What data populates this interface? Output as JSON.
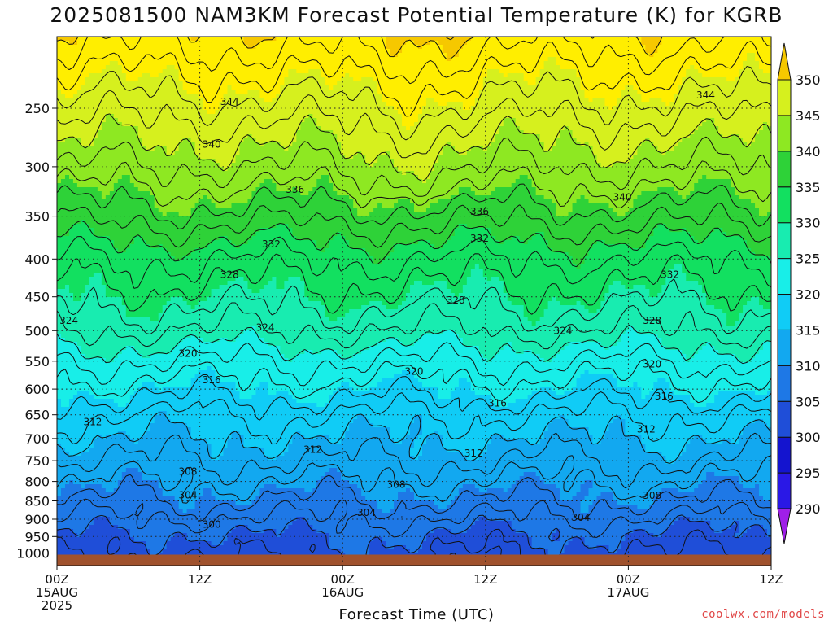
{
  "header": {
    "title": "2025081500 NAM3KM Forecast Potential Temperature (K) for KGRB"
  },
  "footer": {
    "xlabel": "Forecast Time (UTC)",
    "credit": "coolwx.com/models"
  },
  "chart_data": {
    "type": "heatmap",
    "title": "2025081500 NAM3KM Forecast Potential Temperature (K) for KGRB",
    "xlabel": "Forecast Time (UTC)",
    "ylabel": "",
    "x_forecast_hours_range": [
      0,
      60
    ],
    "x_ticks": [
      {
        "hour": 0,
        "lines": [
          "00Z",
          "15AUG",
          "2025"
        ]
      },
      {
        "hour": 12,
        "lines": [
          "12Z"
        ]
      },
      {
        "hour": 24,
        "lines": [
          "00Z",
          "16AUG"
        ]
      },
      {
        "hour": 36,
        "lines": [
          "12Z"
        ]
      },
      {
        "hour": 48,
        "lines": [
          "00Z",
          "17AUG"
        ]
      },
      {
        "hour": 60,
        "lines": [
          "12Z"
        ]
      }
    ],
    "y_axis": "pressure (hPa), inverted, log scale",
    "y_range": [
      1040,
      200
    ],
    "y_ticks": [
      250,
      300,
      350,
      400,
      450,
      500,
      550,
      600,
      650,
      700,
      750,
      800,
      850,
      900,
      950,
      1000
    ],
    "grid": "dotted",
    "colorbar": {
      "placement": "right",
      "levels": [
        290,
        295,
        300,
        305,
        310,
        315,
        320,
        325,
        330,
        335,
        340,
        345,
        350
      ],
      "colors": [
        "#9f1fe8",
        "#2a18e6",
        "#1414cf",
        "#1f4ed8",
        "#1e78e6",
        "#12a8f0",
        "#10ccf6",
        "#18eee8",
        "#18ecb0",
        "#12e060",
        "#2ed238",
        "#8ee822",
        "#d6f01e",
        "#ffee00",
        "#f6c800"
      ]
    },
    "ground_color": "#a0522d",
    "contour_interval": 2,
    "profile_hour0": [
      {
        "p": 1000,
        "theta": 299
      },
      {
        "p": 950,
        "theta": 300
      },
      {
        "p": 900,
        "theta": 302
      },
      {
        "p": 850,
        "theta": 304
      },
      {
        "p": 800,
        "theta": 306
      },
      {
        "p": 750,
        "theta": 308
      },
      {
        "p": 700,
        "theta": 310
      },
      {
        "p": 650,
        "theta": 312
      },
      {
        "p": 600,
        "theta": 315
      },
      {
        "p": 550,
        "theta": 318
      },
      {
        "p": 500,
        "theta": 322
      },
      {
        "p": 450,
        "theta": 325
      },
      {
        "p": 400,
        "theta": 328
      },
      {
        "p": 350,
        "theta": 333
      },
      {
        "p": 300,
        "theta": 338
      },
      {
        "p": 250,
        "theta": 343
      },
      {
        "p": 200,
        "theta": 349
      }
    ],
    "contour_labels": [
      {
        "text": "344",
        "hour": 14.5,
        "p": 245
      },
      {
        "text": "344",
        "hour": 54.5,
        "p": 240
      },
      {
        "text": "340",
        "hour": 13,
        "p": 280
      },
      {
        "text": "340",
        "hour": 47.5,
        "p": 330
      },
      {
        "text": "336",
        "hour": 20,
        "p": 322
      },
      {
        "text": "336",
        "hour": 35.5,
        "p": 345
      },
      {
        "text": "332",
        "hour": 18,
        "p": 382
      },
      {
        "text": "332",
        "hour": 35.5,
        "p": 375
      },
      {
        "text": "332",
        "hour": 51.5,
        "p": 420
      },
      {
        "text": "328",
        "hour": 14.5,
        "p": 420
      },
      {
        "text": "328",
        "hour": 33.5,
        "p": 455
      },
      {
        "text": "328",
        "hour": 50,
        "p": 485
      },
      {
        "text": "324",
        "hour": 1,
        "p": 485
      },
      {
        "text": "324",
        "hour": 17.5,
        "p": 495
      },
      {
        "text": "324",
        "hour": 42.5,
        "p": 500
      },
      {
        "text": "320",
        "hour": 11,
        "p": 537
      },
      {
        "text": "320",
        "hour": 30,
        "p": 568
      },
      {
        "text": "320",
        "hour": 50,
        "p": 555
      },
      {
        "text": "316",
        "hour": 13,
        "p": 583
      },
      {
        "text": "316",
        "hour": 37,
        "p": 627
      },
      {
        "text": "316",
        "hour": 51,
        "p": 614
      },
      {
        "text": "312",
        "hour": 3,
        "p": 665
      },
      {
        "text": "312",
        "hour": 21.5,
        "p": 725
      },
      {
        "text": "312",
        "hour": 35,
        "p": 733
      },
      {
        "text": "312",
        "hour": 49.5,
        "p": 680
      },
      {
        "text": "308",
        "hour": 11,
        "p": 776
      },
      {
        "text": "308",
        "hour": 28.5,
        "p": 808
      },
      {
        "text": "308",
        "hour": 50,
        "p": 836
      },
      {
        "text": "304",
        "hour": 11,
        "p": 835
      },
      {
        "text": "304",
        "hour": 26,
        "p": 882
      },
      {
        "text": "304",
        "hour": 44,
        "p": 896
      },
      {
        "text": "300",
        "hour": 13,
        "p": 915
      }
    ]
  }
}
